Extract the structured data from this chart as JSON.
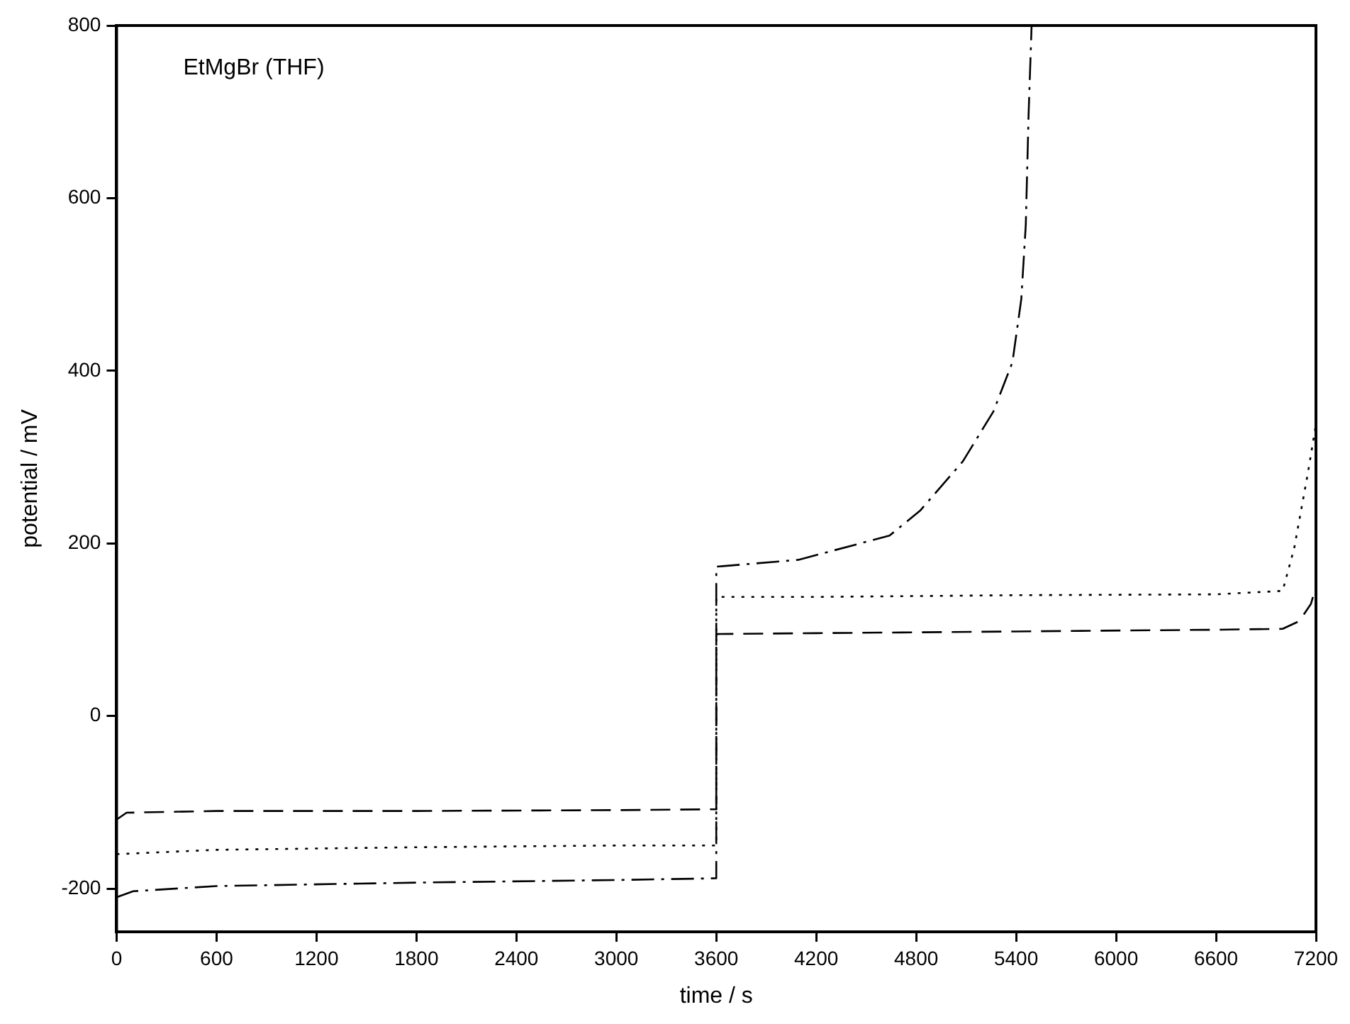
{
  "chart_data": {
    "type": "line",
    "xlabel": "time / s",
    "ylabel": "potential / mV",
    "annotations": [
      "EtMgBr (THF)"
    ],
    "xlim": [
      0,
      7200
    ],
    "xticks": [
      0,
      600,
      1200,
      1800,
      2400,
      3000,
      3600,
      4200,
      4800,
      5400,
      6000,
      6600,
      7200
    ],
    "ylim": [
      -250,
      800
    ],
    "yticks": [
      -200,
      0,
      200,
      400,
      600,
      800
    ],
    "grid": false,
    "legend": false,
    "marker": "none",
    "series": [
      {
        "color": "#000000",
        "line_style": "dashed",
        "x": [
          0,
          60,
          600,
          1800,
          3000,
          3600,
          3600,
          4200,
          5400,
          6600,
          7000,
          7100,
          7170,
          7200,
          7200
        ],
        "values": [
          -120,
          -112,
          -110,
          -110,
          -109,
          -108,
          95,
          96,
          98,
          100,
          101,
          110,
          130,
          150,
          345
        ]
      },
      {
        "color": "#000000",
        "line_style": "dotted",
        "x": [
          0,
          600,
          1800,
          3000,
          3600,
          3600,
          4200,
          5400,
          6600,
          7000,
          7070,
          7150,
          7200
        ],
        "values": [
          -160,
          -155,
          -152,
          -150,
          -150,
          138,
          138,
          140,
          141,
          145,
          195,
          280,
          338
        ]
      },
      {
        "color": "#000000",
        "line_style": "dashdot",
        "x": [
          0,
          100,
          600,
          1800,
          3000,
          3600,
          3600,
          4093,
          4640,
          4824,
          5080,
          5264,
          5378,
          5431,
          5458,
          5475,
          5493
        ],
        "values": [
          -210,
          -203,
          -197,
          -193,
          -190,
          -188,
          173,
          181,
          209,
          238,
          295,
          353,
          410,
          483,
          569,
          698,
          800
        ]
      }
    ]
  }
}
